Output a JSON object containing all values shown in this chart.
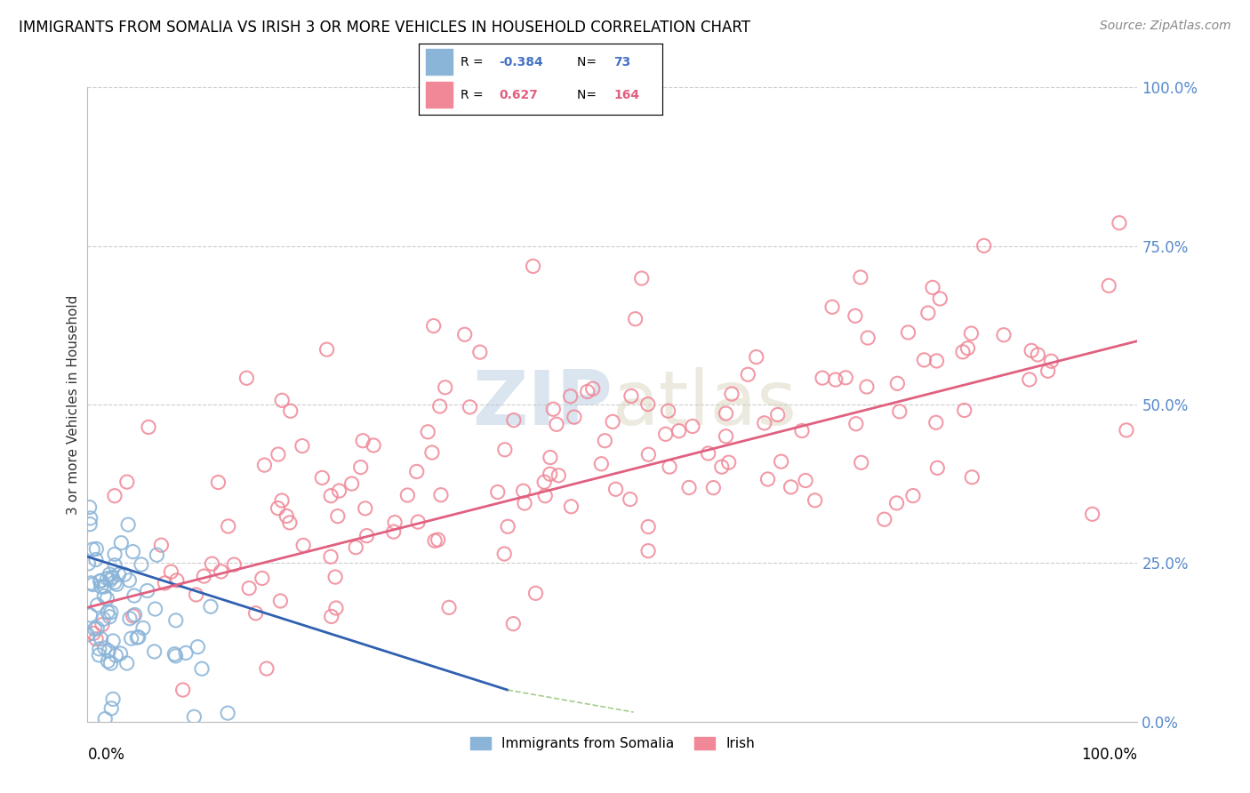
{
  "title": "IMMIGRANTS FROM SOMALIA VS IRISH 3 OR MORE VEHICLES IN HOUSEHOLD CORRELATION CHART",
  "source": "Source: ZipAtlas.com",
  "ylabel": "3 or more Vehicles in Household",
  "yticks": [
    "0.0%",
    "25.0%",
    "50.0%",
    "75.0%",
    "100.0%"
  ],
  "ytick_vals": [
    0,
    25,
    50,
    75,
    100
  ],
  "somalia_color": "#8ab4d8",
  "irish_color": "#f08898",
  "somalia_R": -0.384,
  "somalia_N": 73,
  "irish_R": 0.627,
  "irish_N": 164,
  "somalia_label": "Immigrants from Somalia",
  "irish_label": "Irish",
  "watermark_zip": "ZIP",
  "watermark_atlas": "atlas",
  "background_color": "#ffffff",
  "grid_color": "#cccccc",
  "somalia_line_color": "#3060b0",
  "irish_line_color": "#e06080",
  "dashed_ext_color": "#90c070"
}
